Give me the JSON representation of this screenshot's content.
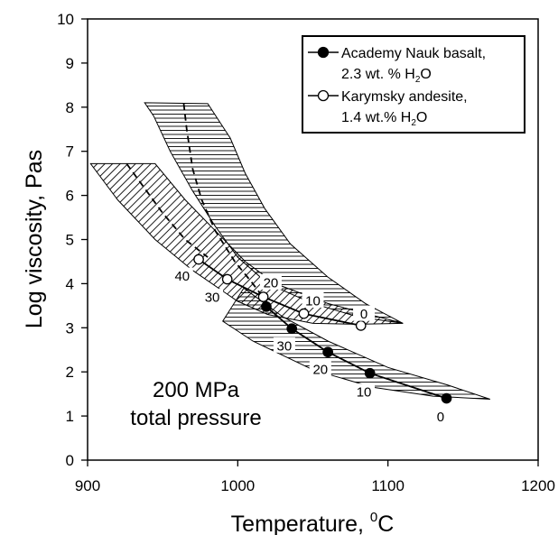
{
  "chart_data": {
    "type": "line",
    "xlabel_main": "Temperature, ",
    "xlabel_sup": "0",
    "xlabel_unit": "C",
    "ylabel": "Log viscosity, Pas",
    "xlim": [
      900,
      1200
    ],
    "ylim": [
      0,
      10
    ],
    "xticks": [
      900,
      1000,
      1100,
      1200
    ],
    "yticks": [
      0,
      1,
      2,
      3,
      4,
      5,
      6,
      7,
      8,
      9,
      10
    ],
    "grid": false,
    "legend_position": "top-right",
    "annotation_lines": [
      "200 MPa",
      "total pressure"
    ],
    "series": [
      {
        "name_line1": "Academy Nauk basalt,",
        "name_line2_main": "2.3 wt. % H",
        "name_line2_sub": "2",
        "name_line2_end": "O",
        "marker": "filled-circle",
        "points": [
          [
            1019,
            3.48
          ],
          [
            1036,
            2.98
          ],
          [
            1060,
            2.45
          ],
          [
            1088,
            1.97
          ],
          [
            1139,
            1.4
          ]
        ],
        "bands": [
          {
            "pattern": "horizontal",
            "upper": [
              [
                1004,
                3.9
              ],
              [
                1030,
                3.25
              ],
              [
                1060,
                2.7
              ],
              [
                1100,
                2.1
              ],
              [
                1140,
                1.7
              ],
              [
                1168,
                1.38
              ]
            ],
            "lower": [
              [
                1168,
                1.38
              ],
              [
                1130,
                1.45
              ],
              [
                1090,
                1.65
              ],
              [
                1050,
                2.05
              ],
              [
                1010,
                2.7
              ],
              [
                990,
                3.15
              ]
            ]
          },
          {
            "pattern": "horizontal",
            "upper": [
              [
                938,
                8.1
              ],
              [
                980,
                8.08
              ],
              [
                995,
                7.3
              ],
              [
                1005,
                6.5
              ],
              [
                1018,
                5.7
              ],
              [
                1035,
                4.9
              ],
              [
                1060,
                4.15
              ],
              [
                1085,
                3.55
              ],
              [
                1110,
                3.1
              ]
            ],
            "lower": [
              [
                1110,
                3.1
              ],
              [
                1080,
                3.25
              ],
              [
                1050,
                3.55
              ],
              [
                1020,
                4.0
              ],
              [
                1000,
                4.6
              ],
              [
                985,
                5.3
              ],
              [
                970,
                6.1
              ],
              [
                955,
                7.0
              ],
              [
                944,
                7.8
              ]
            ]
          }
        ],
        "labels": [
          {
            "text": "30",
            "x": 1031,
            "y": 2.6
          },
          {
            "text": "20",
            "x": 1055,
            "y": 2.07
          },
          {
            "text": "10",
            "x": 1084,
            "y": 1.55
          },
          {
            "text": "0",
            "x": 1135,
            "y": 0.99
          }
        ]
      },
      {
        "name_line1": "Karymsky andesite,",
        "name_line2_main": "1.4 wt.% H",
        "name_line2_sub": "2",
        "name_line2_end": "O",
        "marker": "open-circle",
        "points": [
          [
            974,
            4.55
          ],
          [
            993,
            4.1
          ],
          [
            1017,
            3.7
          ],
          [
            1044,
            3.32
          ],
          [
            1082,
            3.05
          ]
        ],
        "bands": [
          {
            "pattern": "diagonal",
            "upper": [
              [
                902,
                6.72
              ],
              [
                945,
                6.72
              ],
              [
                965,
                5.9
              ],
              [
                985,
                5.2
              ],
              [
                1005,
                4.5
              ],
              [
                1025,
                4.0
              ],
              [
                1060,
                3.55
              ],
              [
                1110,
                3.1
              ]
            ],
            "lower": [
              [
                1110,
                3.1
              ],
              [
                1080,
                3.08
              ],
              [
                1050,
                3.1
              ],
              [
                1020,
                3.3
              ],
              [
                1000,
                3.6
              ],
              [
                970,
                4.3
              ],
              [
                945,
                5.0
              ],
              [
                920,
                5.9
              ]
            ]
          }
        ],
        "labels": [
          {
            "text": "40",
            "x": 963,
            "y": 4.18
          },
          {
            "text": "30",
            "x": 983,
            "y": 3.7
          },
          {
            "text": "20",
            "x": 1022,
            "y": 4.03
          },
          {
            "text": "10",
            "x": 1050,
            "y": 3.62
          },
          {
            "text": "0",
            "x": 1084,
            "y": 3.32
          }
        ]
      }
    ],
    "dashed_lines": [
      {
        "points": [
          [
            926,
            6.72
          ],
          [
            935,
            6.3
          ],
          [
            950,
            5.6
          ],
          [
            965,
            5.0
          ],
          [
            980,
            4.6
          ]
        ]
      },
      {
        "points": [
          [
            964,
            8.08
          ],
          [
            966,
            7.5
          ],
          [
            970,
            6.6
          ],
          [
            976,
            5.9
          ],
          [
            985,
            5.2
          ],
          [
            998,
            4.5
          ],
          [
            1010,
            4.0
          ],
          [
            1020,
            3.55
          ]
        ]
      }
    ]
  }
}
